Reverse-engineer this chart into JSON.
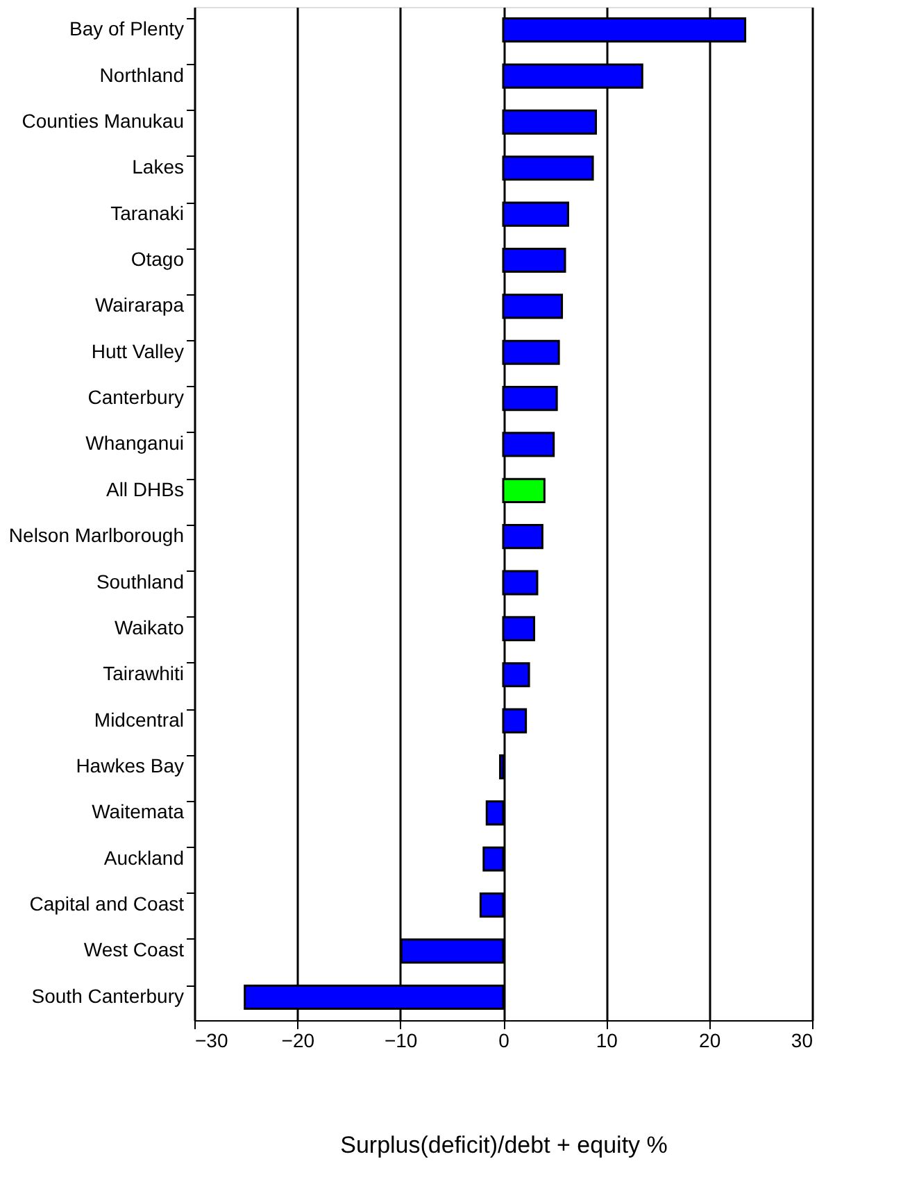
{
  "chart_data": {
    "type": "bar",
    "orientation": "horizontal",
    "xlabel": "Surplus(deficit)/debt + equity %",
    "categories": [
      "Bay of Plenty",
      "Northland",
      "Counties Manukau",
      "Lakes",
      "Taranaki",
      "Otago",
      "Wairarapa",
      "Hutt Valley",
      "Canterbury",
      "Whanganui",
      "All DHBs",
      "Nelson Marlborough",
      "Southland",
      "Waikato",
      "Tairawhiti",
      "Midcentral",
      "Hawkes Bay",
      "Waitemata",
      "Auckland",
      "Capital and Coast",
      "West Coast",
      "South Canterbury"
    ],
    "values": [
      23.5,
      13.5,
      9.0,
      8.7,
      6.3,
      6.0,
      5.7,
      5.4,
      5.2,
      4.9,
      4.0,
      3.8,
      3.3,
      3.0,
      2.5,
      2.2,
      -0.3,
      -1.6,
      -1.9,
      -2.2,
      -9.9,
      -25.1
    ],
    "colors": [
      "#0000ff",
      "#0000ff",
      "#0000ff",
      "#0000ff",
      "#0000ff",
      "#0000ff",
      "#0000ff",
      "#0000ff",
      "#0000ff",
      "#0000ff",
      "#00ff00",
      "#0000ff",
      "#0000ff",
      "#0000ff",
      "#0000ff",
      "#0000ff",
      "#0000ff",
      "#0000ff",
      "#0000ff",
      "#0000ff",
      "#0000ff",
      "#0000ff"
    ],
    "xlim": [
      -30,
      30
    ],
    "xticks": [
      -30,
      -20,
      -10,
      0,
      10,
      20,
      30
    ],
    "grid": "x"
  }
}
